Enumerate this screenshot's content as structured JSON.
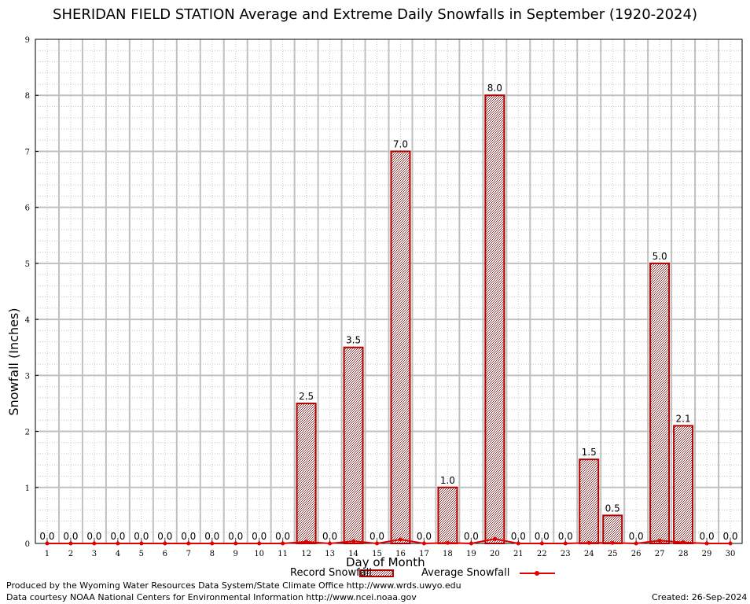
{
  "colors": {
    "bar_stroke": "#b00000",
    "bar_fill": "#c8a4a4",
    "avg_line": "#e00000",
    "grid_major": "#c0c0c0",
    "grid_minor": "#c8c8c8"
  },
  "footer": {
    "produced_by": "Produced by the Wyoming Water Resources Data System/State Climate Office http://www.wrds.uwyo.edu",
    "courtesy": "Data courtesy NOAA National Centers for Environmental Information http://www.ncei.noaa.gov",
    "created": "Created:  26-Sep-2024"
  },
  "chart_data": {
    "type": "bar",
    "title": "SHERIDAN FIELD STATION Average and Extreme Daily Snowfalls in September (1920-2024)",
    "xlabel": "Day of Month",
    "ylabel": "Snowfall (Inches)",
    "ylim": [
      0,
      9
    ],
    "yticks": [
      "0",
      "1",
      "2",
      "3",
      "4",
      "5",
      "6",
      "7",
      "8",
      "9"
    ],
    "grid": true,
    "legend_position": "bottom",
    "categories": [
      "1",
      "2",
      "3",
      "4",
      "5",
      "6",
      "7",
      "8",
      "9",
      "10",
      "11",
      "12",
      "13",
      "14",
      "15",
      "16",
      "17",
      "18",
      "19",
      "20",
      "21",
      "22",
      "23",
      "24",
      "25",
      "26",
      "27",
      "28",
      "29",
      "30"
    ],
    "series": [
      {
        "name": "Record Snowfall",
        "kind": "bar",
        "values": [
          0,
          0,
          0,
          0,
          0,
          0,
          0,
          0,
          0,
          0,
          0,
          2.5,
          0,
          3.5,
          0,
          7.0,
          0,
          1.0,
          0,
          8.0,
          0,
          0,
          0,
          1.5,
          0.5,
          0,
          5.0,
          2.1,
          0,
          0
        ],
        "labels": [
          "0.0",
          "0.0",
          "0.0",
          "0.0",
          "0.0",
          "0.0",
          "0.0",
          "0.0",
          "0.0",
          "0.0",
          "0.0",
          "2.5",
          "0.0",
          "3.5",
          "0.0",
          "7.0",
          "0.0",
          "1.0",
          "0.0",
          "8.0",
          "0.0",
          "0.0",
          "0.0",
          "1.5",
          "0.5",
          "0.0",
          "5.0",
          "2.1",
          "0.0",
          "0.0"
        ]
      },
      {
        "name": "Average Snowfall",
        "kind": "line",
        "values": [
          0,
          0,
          0,
          0,
          0,
          0,
          0,
          0,
          0,
          0,
          0,
          0.03,
          0,
          0.04,
          0,
          0.07,
          0,
          0.01,
          0,
          0.08,
          0,
          0,
          0,
          0.01,
          0.01,
          0,
          0.05,
          0.02,
          0,
          0
        ]
      }
    ]
  }
}
